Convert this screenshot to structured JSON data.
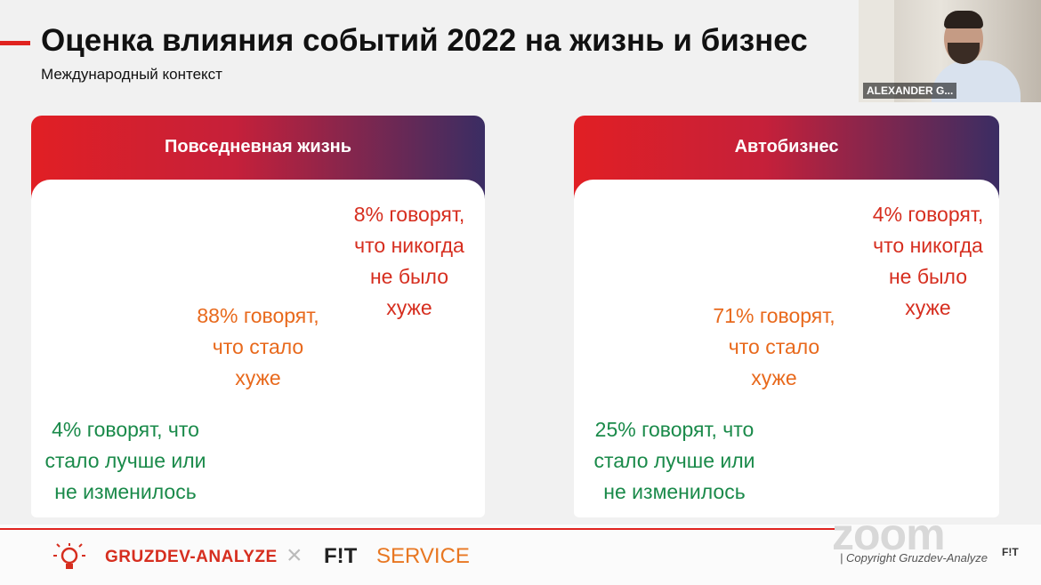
{
  "slide": {
    "title": "Оценка влияния событий 2022 на жизнь и бизнес",
    "subtitle": "Международный контекст",
    "accent": "#e0231f"
  },
  "cards": [
    {
      "heading": "Повседневная жизнь",
      "never_worse": [
        "8% говорят,",
        "что никогда",
        "не было",
        "хуже"
      ],
      "worse": [
        "88% говорят,",
        "что стало",
        "хуже"
      ],
      "better": [
        "4% говорят, что",
        "стало лучше или",
        "не изменилось"
      ]
    },
    {
      "heading": "Автобизнес",
      "never_worse": [
        "4% говорят,",
        "что никогда",
        "не было",
        "хуже"
      ],
      "worse": [
        "71% говорят,",
        "что стало",
        "хуже"
      ],
      "better": [
        "25% говорят, что",
        "стало лучше или",
        "не изменилось"
      ]
    }
  ],
  "colors": {
    "red": "#d62e1f",
    "orange": "#e8691c",
    "green": "#1a8a4a"
  },
  "webcam": {
    "name": "ALEXANDER G..."
  },
  "footer": {
    "brand1": "GRUZDEV-ANALYZE",
    "separator": "×",
    "brand2_bold": "F!T",
    "brand2_rest": "SERVICE",
    "zoom": "zoom",
    "copyright": "| Copyright Gruzdev-Analyze",
    "fit_small": "F!T"
  },
  "icons": {
    "logo": "lightbulb-icon"
  }
}
